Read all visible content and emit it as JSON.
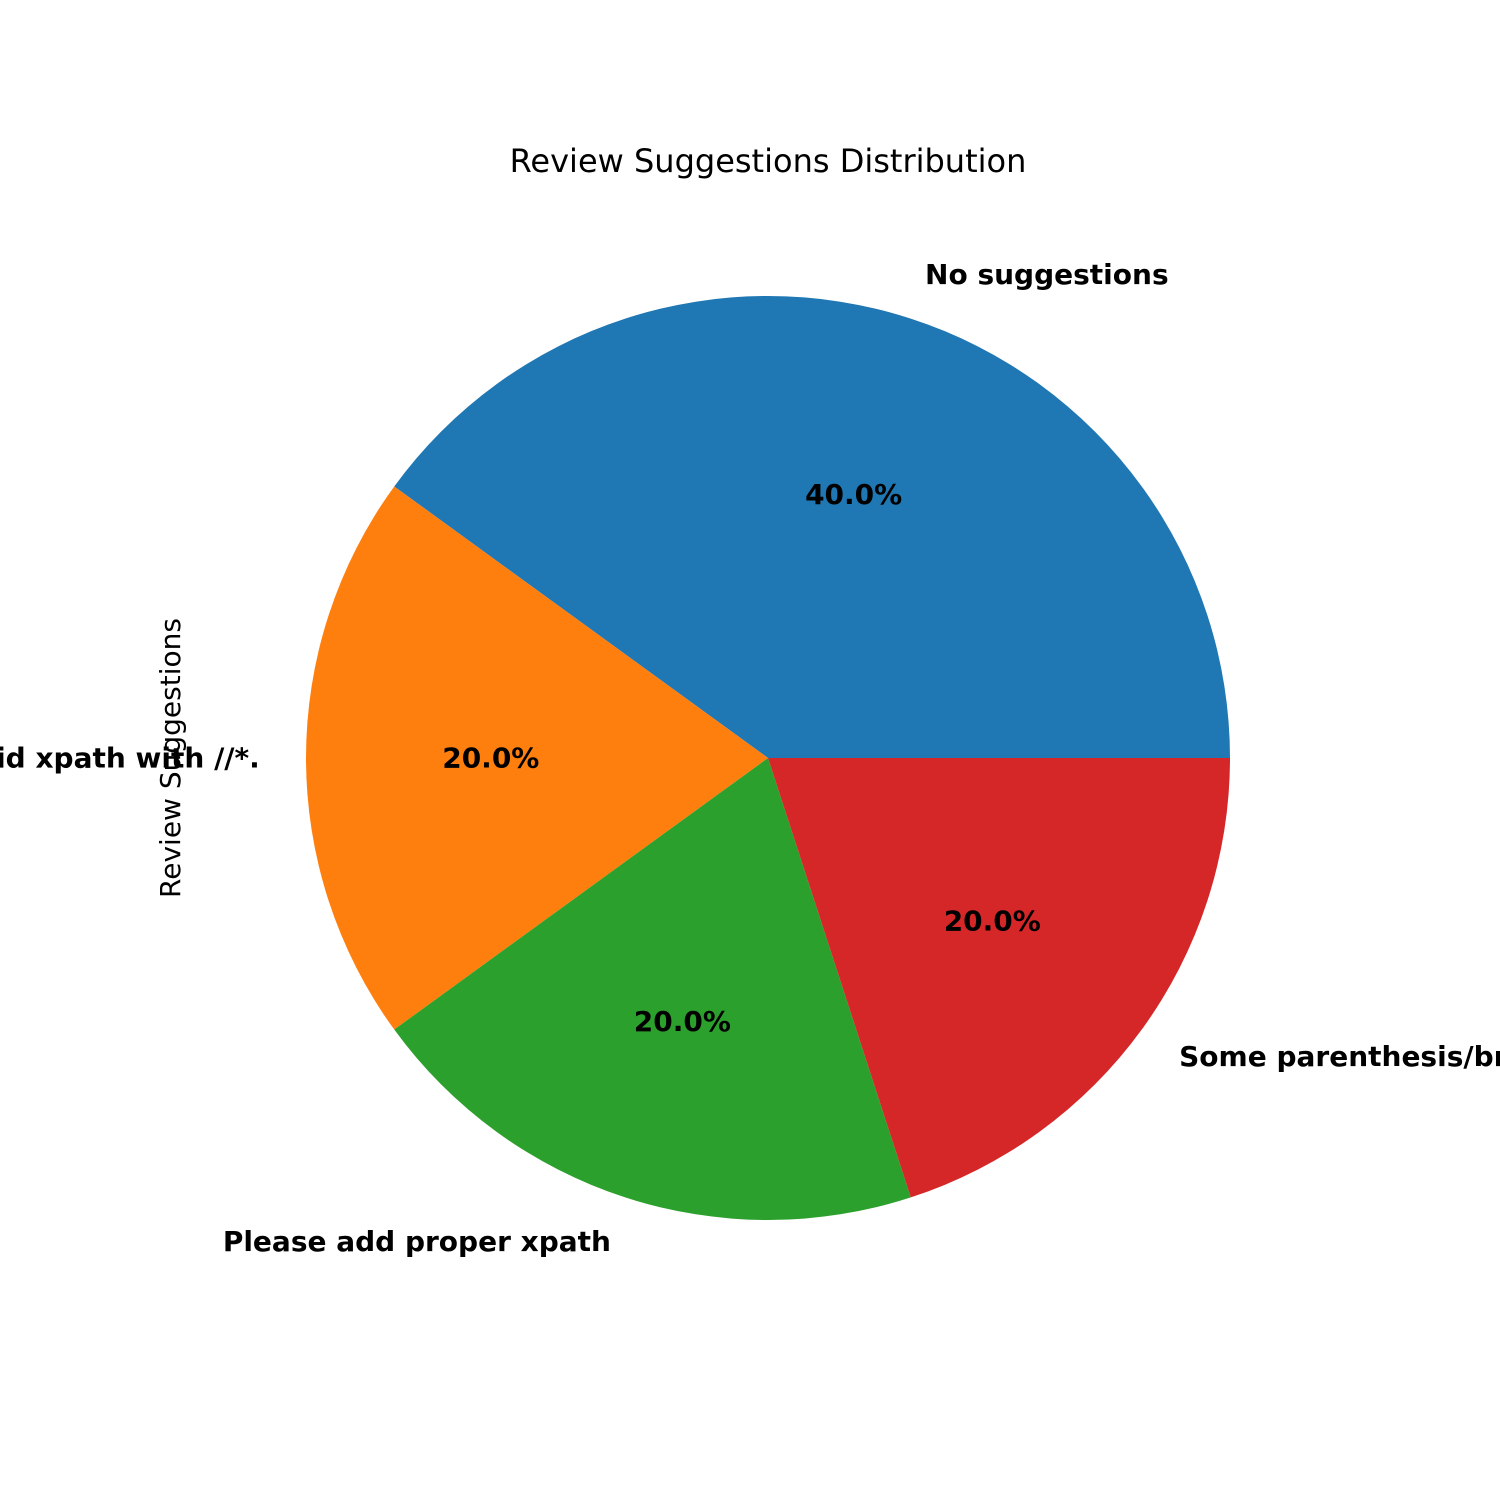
{
  "chart_data": {
    "type": "pie",
    "title": "Review Suggestions Distribution",
    "ylabel": "Review Suggestions",
    "slices": [
      {
        "label": "No suggestions",
        "value": 40.0,
        "pct_label": "40.0%",
        "color": "#1f77b4"
      },
      {
        "label": "Please avoid xpath with //*.",
        "value": 20.0,
        "pct_label": "20.0%",
        "color": "#ff7f0e"
      },
      {
        "label": "Please add proper xpath",
        "value": 20.0,
        "pct_label": "20.0%",
        "color": "#2ca02c"
      },
      {
        "label": "Some parenthesis/brackets are missing",
        "value": 20.0,
        "pct_label": "20.0%",
        "color": "#d62728"
      }
    ],
    "start_angle_deg": 0,
    "direction": "counterclockwise",
    "legend": "none"
  }
}
